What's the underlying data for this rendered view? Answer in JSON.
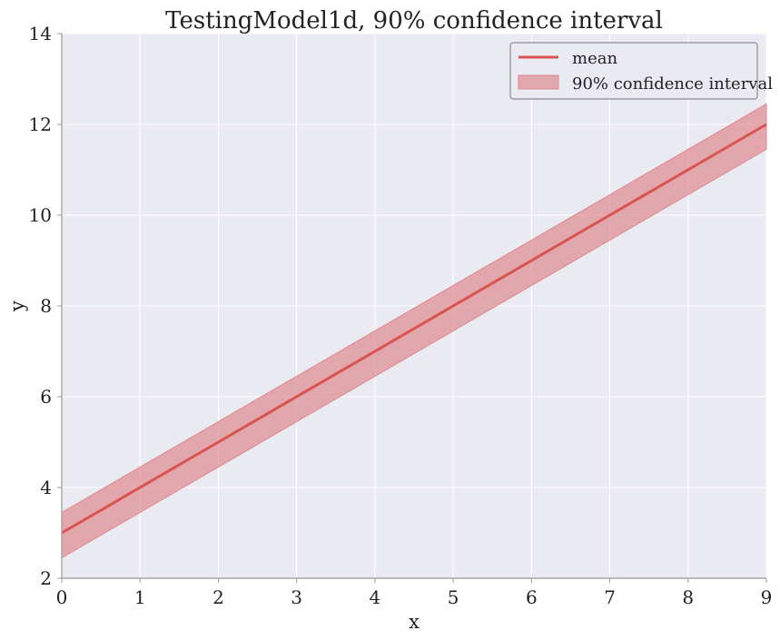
{
  "chart_data": {
    "type": "line",
    "title": "TestingModel1d, 90% confidence interval",
    "xlabel": "x",
    "ylabel": "y",
    "xlim": [
      0,
      9
    ],
    "ylim": [
      2,
      14
    ],
    "xticks": [
      "0",
      "1",
      "2",
      "3",
      "4",
      "5",
      "6",
      "7",
      "8",
      "9"
    ],
    "yticks": [
      "2",
      "4",
      "6",
      "8",
      "10",
      "12",
      "14"
    ],
    "grid": true,
    "legend_position": "top-right",
    "series": [
      {
        "name": "mean",
        "kind": "line",
        "color": "#d9534f",
        "x": [
          0,
          9
        ],
        "y": [
          3,
          12
        ]
      },
      {
        "name": "90% confidence interval",
        "kind": "band",
        "color": "#d9534f",
        "x": [
          0,
          9
        ],
        "lower": [
          2.45,
          11.45
        ],
        "upper": [
          3.45,
          12.45
        ]
      }
    ]
  },
  "colors": {
    "background": "#eaeaf2",
    "grid": "#ffffff",
    "axis": "#999999",
    "mean_line": "#d9534f",
    "band_fill": "#de8a8e"
  }
}
